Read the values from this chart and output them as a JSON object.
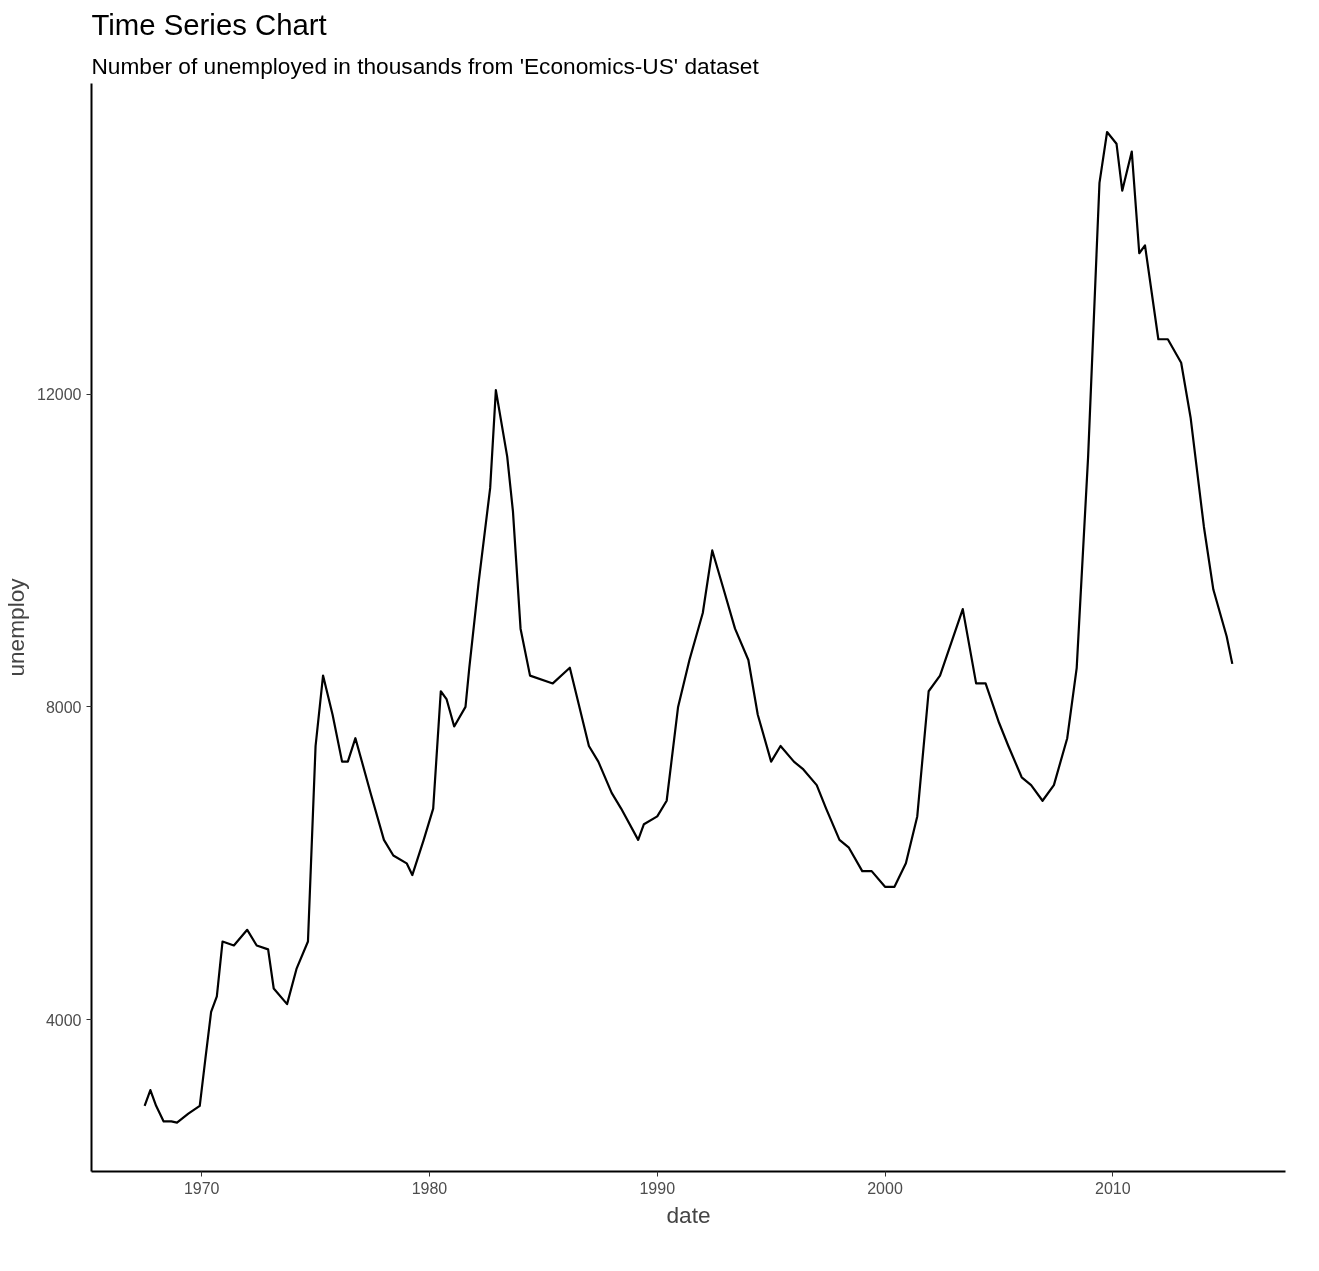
{
  "chart_data": {
    "type": "line",
    "title": "Time Series Chart",
    "subtitle": "Number of unemployed in thousands from 'Economics-US' dataset",
    "xlabel": "date",
    "ylabel": "unemploy",
    "x": [
      "1967-07",
      "1967-10",
      "1968-01",
      "1968-05",
      "1968-09",
      "1968-12",
      "1969-06",
      "1969-12",
      "1970-03",
      "1970-06",
      "1970-09",
      "1970-12",
      "1971-06",
      "1972-01",
      "1972-06",
      "1972-12",
      "1973-03",
      "1973-10",
      "1974-03",
      "1974-09",
      "1975-01",
      "1975-05",
      "1975-10",
      "1976-03",
      "1976-06",
      "1976-10",
      "1977-06",
      "1978-01",
      "1978-06",
      "1979-01",
      "1979-04",
      "1979-10",
      "1980-03",
      "1980-07",
      "1980-10",
      "1981-02",
      "1981-08",
      "1981-10",
      "1982-03",
      "1982-09",
      "1982-12",
      "1983-06",
      "1983-09",
      "1984-01",
      "1984-06",
      "1985-06",
      "1986-03",
      "1986-06",
      "1987-01",
      "1987-06",
      "1988-01",
      "1988-06",
      "1989-03",
      "1989-06",
      "1990-01",
      "1990-06",
      "1990-12",
      "1991-06",
      "1992-01",
      "1992-06",
      "1992-12",
      "1993-06",
      "1994-01",
      "1994-06",
      "1995-01",
      "1995-06",
      "1996-01",
      "1996-06",
      "1997-01",
      "1997-06",
      "1998-01",
      "1998-06",
      "1999-01",
      "1999-06",
      "2000-01",
      "2000-06",
      "2000-12",
      "2001-06",
      "2001-12",
      "2002-06",
      "2003-06",
      "2004-01",
      "2004-06",
      "2005-01",
      "2005-06",
      "2006-01",
      "2006-06",
      "2006-12",
      "2007-06",
      "2008-01",
      "2008-06",
      "2008-12",
      "2009-06",
      "2009-10",
      "2010-03",
      "2010-06",
      "2010-11",
      "2011-03",
      "2011-06",
      "2012-01",
      "2012-06",
      "2013-01",
      "2013-06",
      "2014-01",
      "2014-06",
      "2015-01",
      "2015-04"
    ],
    "series": [
      {
        "color": "#000000",
        "values": [
          2900,
          3100,
          2900,
          2700,
          2700,
          2685,
          2800,
          2900,
          3500,
          4100,
          4300,
          5000,
          4950,
          5150,
          4950,
          4900,
          4400,
          4200,
          4650,
          5000,
          7500,
          8400,
          7900,
          7300,
          7300,
          7600,
          6900,
          6300,
          6100,
          6000,
          5850,
          6300,
          6700,
          8200,
          8100,
          7750,
          8000,
          8500,
          9600,
          10800,
          12050,
          11200,
          10500,
          9000,
          8400,
          8300,
          8500,
          8200,
          7500,
          7300,
          6900,
          6700,
          6300,
          6500,
          6600,
          6800,
          8000,
          8600,
          9200,
          10000,
          9500,
          9000,
          8600,
          7900,
          7300,
          7500,
          7300,
          7200,
          7000,
          6700,
          6300,
          6200,
          5900,
          5900,
          5700,
          5700,
          6000,
          6600,
          8200,
          8400,
          9250,
          8300,
          8300,
          7800,
          7500,
          7100,
          7000,
          6800,
          7000,
          7600,
          8500,
          11200,
          14700,
          15350,
          15200,
          14600,
          15100,
          13800,
          13900,
          12700,
          12700,
          12400,
          11700,
          10300,
          9500,
          8900,
          8550
        ]
      }
    ],
    "xlim": [
      "1965-03",
      "2017-08"
    ],
    "ylim": [
      2060,
      15970
    ],
    "xticks": [
      {
        "value": "1970-01",
        "label": "1970"
      },
      {
        "value": "1980-01",
        "label": "1980"
      },
      {
        "value": "1990-01",
        "label": "1990"
      },
      {
        "value": "2000-01",
        "label": "2000"
      },
      {
        "value": "2010-01",
        "label": "2010"
      }
    ],
    "yticks": [
      4000,
      8000,
      12000
    ],
    "line_style": "solid",
    "marker": "none",
    "grid": false
  }
}
